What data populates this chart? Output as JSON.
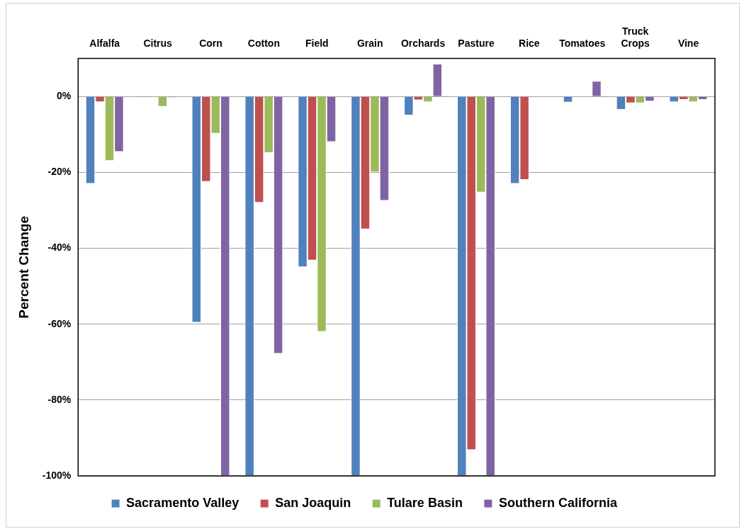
{
  "chart_data": {
    "type": "bar",
    "ylabel": "Percent Change",
    "categories": [
      "Alfalfa",
      "Citrus",
      "Corn",
      "Cotton",
      "Field",
      "Grain",
      "Orchards",
      "Pasture",
      "Rice",
      "Tomatoes",
      "Truck Crops",
      "Vine"
    ],
    "series": [
      {
        "name": "Sacramento Valley",
        "color": "#4f81bd",
        "values": [
          -23,
          -0.2,
          -59.6,
          -100,
          -45,
          -100,
          -5,
          -100,
          -23,
          -1.6,
          -3.5,
          -1.5
        ]
      },
      {
        "name": "San Joaquin",
        "color": "#c0504d",
        "values": [
          -1.5,
          -0.2,
          -22.5,
          -28,
          -43.2,
          -35,
          -1,
          -93.2,
          -22,
          null,
          -1.8,
          -0.9
        ]
      },
      {
        "name": "Tulare Basin",
        "color": "#9bbb59",
        "values": [
          -17,
          -2.7,
          -9.8,
          -14.9,
          -62,
          -20,
          -1.5,
          -25.3,
          null,
          null,
          -1.8,
          -1.5
        ]
      },
      {
        "name": "Southern California",
        "color": "#8064a2",
        "values": [
          -14.6,
          -0.3,
          -100,
          -67.8,
          -12,
          -27.5,
          8.6,
          -100,
          null,
          4.1,
          -1.3,
          -0.9
        ]
      }
    ],
    "ylim": [
      -100,
      10
    ],
    "yticks": [
      {
        "value": -100,
        "label": "-100%"
      },
      {
        "value": -80,
        "label": "-80%"
      },
      {
        "value": -60,
        "label": "-60%"
      },
      {
        "value": -40,
        "label": "-40%"
      },
      {
        "value": -20,
        "label": "-20%"
      },
      {
        "value": 0,
        "label": "0%"
      }
    ],
    "grid": "y",
    "legend": "bottom"
  }
}
